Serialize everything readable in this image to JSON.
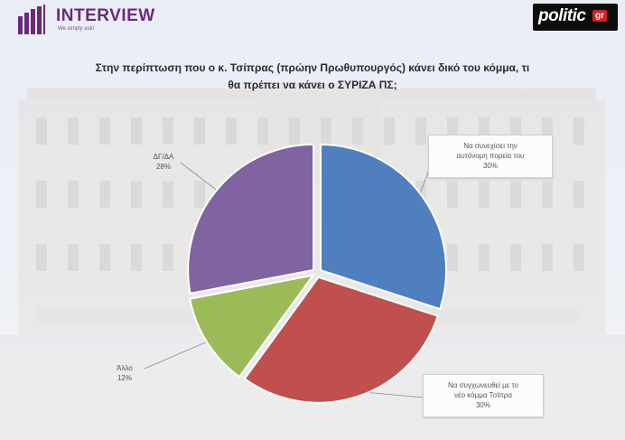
{
  "header": {
    "brand_name": "INTERVIEW",
    "brand_tagline": "We simply ask!",
    "partner_logo_text": "politic",
    "partner_logo_suffix": "gr"
  },
  "chart_data": {
    "type": "pie",
    "title_lines": [
      "Στην περίπτωση που ο κ. Τσίπρας (πρώην Πρωθυπουργός) κάνει δικό του κόμμα, τι",
      "θα πρέπει να κάνει ο ΣΥΡΙΖΑ ΠΣ;"
    ],
    "slices": [
      {
        "label_lines": [
          "Να συνεχίσει την",
          "αυτόνομη πορεία του"
        ],
        "value": 30,
        "value_label": "30%",
        "color": "#4f7fbe"
      },
      {
        "label_lines": [
          "Να συγχωνευθεί με το",
          "νέο κόμμα Τσίπρα"
        ],
        "value": 30,
        "value_label": "30%",
        "color": "#c0504d"
      },
      {
        "label_lines": [
          "Άλλο"
        ],
        "value": 12,
        "value_label": "12%",
        "color": "#9bbb59"
      },
      {
        "label_lines": [
          "ΔΓ/ΔΑ"
        ],
        "value": 28,
        "value_label": "28%",
        "color": "#8064a2"
      }
    ]
  }
}
